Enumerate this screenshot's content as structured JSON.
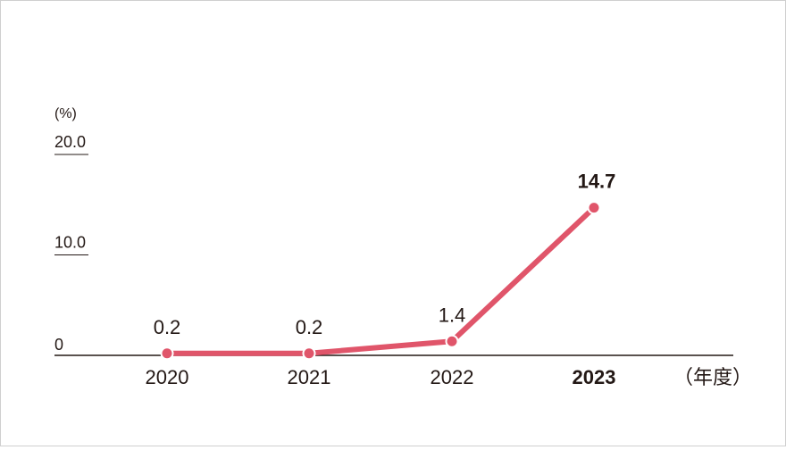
{
  "chart_data": {
    "type": "line",
    "y_unit": "(%)",
    "x_unit": "（年度）",
    "yticks": [
      "20.0",
      "10.0",
      "0"
    ],
    "ytick_values": [
      20,
      10,
      0
    ],
    "ylim": [
      0,
      20
    ],
    "categories": [
      "2020",
      "2021",
      "2022",
      "2023"
    ],
    "values": [
      0.2,
      0.2,
      1.4,
      14.7
    ],
    "data_labels": [
      "0.2",
      "0.2",
      "1.4",
      "14.7"
    ],
    "highlight_index": 3,
    "grid": false,
    "legend": "none"
  },
  "colors": {
    "line": "#e0556a",
    "axis": "#231815",
    "text": "#231815"
  }
}
